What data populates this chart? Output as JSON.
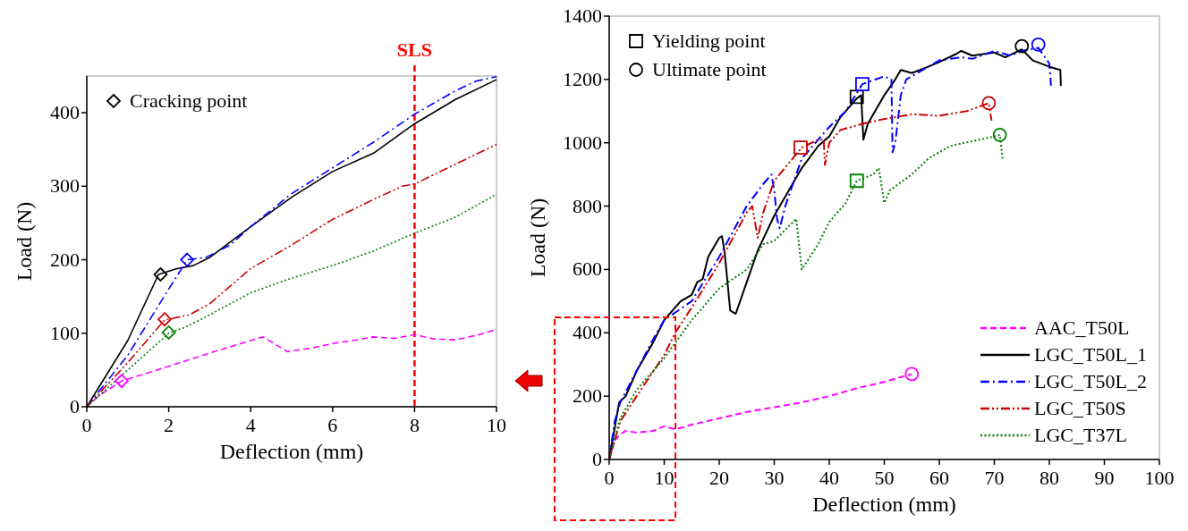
{
  "chart_data": [
    {
      "type": "line",
      "xlabel": "Deflection (mm)",
      "ylabel": "Load (N)",
      "xlim": [
        0,
        10
      ],
      "ylim": [
        0,
        450
      ],
      "xticks": [
        0,
        2,
        4,
        6,
        8,
        10
      ],
      "yticks": [
        0,
        100,
        200,
        300,
        400
      ],
      "grid": false,
      "legend": "top left",
      "ref_lines": [
        {
          "axis": "x",
          "value": 8,
          "label": "SLS",
          "color": "#ff0000",
          "line_style": "dashed"
        }
      ],
      "series": [
        {
          "color": "#ff00ff",
          "line_style": "dashed",
          "x": [
            0,
            0.3,
            0.85,
            2,
            3,
            4,
            4.3,
            4.6,
            4.9,
            5.5,
            6,
            6.5,
            7,
            7.5,
            8,
            8.5,
            9,
            9.5,
            10
          ],
          "values": [
            0,
            15,
            35,
            55,
            73,
            90,
            95,
            85,
            75,
            80,
            86,
            90,
            95,
            93,
            98,
            92,
            91,
            97,
            105
          ]
        },
        {
          "color": "#000000",
          "line_style": "solid",
          "x": [
            0,
            1,
            1.75,
            2.2,
            2.6,
            3,
            4,
            5,
            6,
            7,
            8,
            9,
            10
          ],
          "values": [
            0,
            90,
            180,
            188,
            192,
            203,
            245,
            285,
            320,
            345,
            385,
            418,
            445
          ]
        },
        {
          "color": "#0000ff",
          "line_style": "dashdot",
          "x": [
            0,
            1,
            2,
            2.45,
            2.9,
            3.5,
            4,
            5,
            6,
            7,
            8,
            9,
            9.5,
            10
          ],
          "values": [
            0,
            70,
            160,
            200,
            203,
            220,
            245,
            290,
            325,
            360,
            398,
            430,
            443,
            449
          ]
        },
        {
          "color": "#cc0000",
          "line_style": "dashdotdot",
          "x": [
            0,
            1,
            1.9,
            2.5,
            3,
            4,
            5,
            6,
            7,
            7.7,
            8,
            9,
            10
          ],
          "values": [
            0,
            60,
            118,
            125,
            140,
            188,
            220,
            255,
            282,
            300,
            303,
            330,
            357
          ]
        },
        {
          "color": "#008000",
          "line_style": "dotted",
          "x": [
            0,
            1,
            2,
            2.4,
            3,
            4,
            5,
            6,
            7,
            8,
            9,
            10
          ],
          "values": [
            0,
            50,
            100,
            108,
            125,
            155,
            175,
            192,
            212,
            236,
            258,
            289
          ]
        },
        {
          "type": "scatter",
          "name": "Cracking point",
          "marker": "diamond",
          "color": "#000000",
          "colors": [
            "#000000",
            "#0000ff",
            "#cc0000",
            "#008000",
            "#ff00ff"
          ],
          "x": [
            1.8,
            2.45,
            1.9,
            2,
            0.85
          ],
          "values": [
            180,
            200,
            119,
            101,
            35
          ]
        }
      ]
    },
    {
      "type": "line",
      "xlabel": "Deflection (mm)",
      "ylabel": "Load (N)",
      "xlim": [
        0,
        100
      ],
      "ylim": [
        0,
        1400
      ],
      "xticks": [
        0,
        10,
        20,
        30,
        40,
        50,
        60,
        70,
        80,
        90,
        100
      ],
      "yticks": [
        0,
        200,
        400,
        600,
        800,
        1000,
        1200,
        1400
      ],
      "grid": false,
      "legend": "bottom right",
      "series": [
        {
          "name": "AAC_T50L",
          "color": "#ff00ff",
          "line_style": "dashed",
          "x": [
            0,
            1,
            2,
            3,
            5,
            8,
            10,
            12,
            15,
            20,
            25,
            30,
            35,
            40,
            45,
            50,
            55
          ],
          "values": [
            0,
            60,
            80,
            90,
            85,
            90,
            105,
            95,
            110,
            130,
            150,
            165,
            180,
            200,
            225,
            245,
            270
          ]
        },
        {
          "name": "LGC_T50L_1",
          "color": "#000000",
          "line_style": "solid",
          "x": [
            0,
            1,
            1.8,
            3,
            5,
            8,
            10,
            12,
            13,
            15,
            16,
            17,
            18,
            20,
            20.5,
            21,
            22,
            23,
            25,
            27,
            30,
            33,
            35,
            38,
            40,
            42,
            45,
            45.8,
            46.2,
            47,
            50,
            52,
            53,
            55,
            58,
            60,
            63,
            64,
            66,
            68,
            70,
            72,
            75,
            77,
            80,
            82,
            82.1
          ],
          "values": [
            0,
            100,
            180,
            200,
            280,
            370,
            440,
            480,
            500,
            520,
            560,
            570,
            640,
            700,
            705,
            650,
            470,
            460,
            560,
            660,
            770,
            860,
            920,
            990,
            1020,
            1080,
            1140,
            1150,
            1010,
            1060,
            1150,
            1200,
            1230,
            1220,
            1240,
            1255,
            1280,
            1290,
            1275,
            1280,
            1285,
            1270,
            1295,
            1260,
            1240,
            1230,
            1180
          ]
        },
        {
          "name": "LGC_T50L_2",
          "color": "#0000ff",
          "line_style": "dashdot",
          "x": [
            0,
            1,
            2,
            5,
            8,
            10,
            15,
            20,
            25,
            28,
            29.5,
            30,
            30.5,
            31,
            32,
            35,
            40,
            43,
            46,
            50,
            51.3,
            51.5,
            52,
            53,
            54,
            57,
            60,
            64,
            66,
            70,
            73,
            75,
            78,
            80,
            80.3
          ],
          "values": [
            0,
            120,
            180,
            280,
            380,
            440,
            500,
            640,
            800,
            870,
            900,
            850,
            760,
            730,
            800,
            950,
            1050,
            1100,
            1185,
            1210,
            1200,
            970,
            1000,
            1150,
            1200,
            1230,
            1260,
            1270,
            1265,
            1290,
            1275,
            1290,
            1300,
            1250,
            1180
          ]
        },
        {
          "name": "LGC_T50S",
          "color": "#cc0000",
          "line_style": "dashdotdot",
          "x": [
            0,
            2,
            5,
            10,
            12,
            15,
            20,
            25,
            26,
            27,
            28,
            30,
            35,
            38,
            39,
            39.2,
            40,
            42,
            46,
            50,
            55,
            60,
            65,
            69,
            69.5
          ],
          "values": [
            0,
            120,
            200,
            330,
            400,
            480,
            620,
            780,
            800,
            700,
            780,
            880,
            985,
            1010,
            1010,
            930,
            1000,
            1040,
            1060,
            1075,
            1090,
            1085,
            1100,
            1125,
            1070
          ]
        },
        {
          "name": "LGC_T37L",
          "color": "#008000",
          "line_style": "dotted",
          "x": [
            0,
            2,
            5,
            10,
            15,
            20,
            25,
            28,
            30,
            34,
            35,
            38,
            40,
            43,
            45,
            48,
            49,
            50,
            51,
            55,
            58,
            62,
            66,
            70,
            71,
            71.5
          ],
          "values": [
            0,
            130,
            220,
            320,
            440,
            540,
            600,
            680,
            690,
            760,
            600,
            680,
            750,
            810,
            880,
            900,
            920,
            810,
            850,
            900,
            950,
            990,
            1005,
            1020,
            1025,
            950
          ]
        },
        {
          "type": "scatter",
          "name": "Yielding point",
          "marker": "square",
          "color": "#000000",
          "colors": [
            "#000000",
            "#0000ff",
            "#cc0000",
            "#008000"
          ],
          "x": [
            45,
            46,
            34.8,
            45
          ],
          "values": [
            1145,
            1185,
            985,
            880
          ]
        },
        {
          "type": "scatter",
          "name": "Ultimate point",
          "marker": "circle",
          "color": "#000000",
          "colors": [
            "#ff00ff",
            "#000000",
            "#0000ff",
            "#cc0000",
            "#008000"
          ],
          "x": [
            55,
            75,
            78,
            69,
            71
          ],
          "values": [
            270,
            1305,
            1310,
            1125,
            1025
          ]
        }
      ]
    }
  ]
}
